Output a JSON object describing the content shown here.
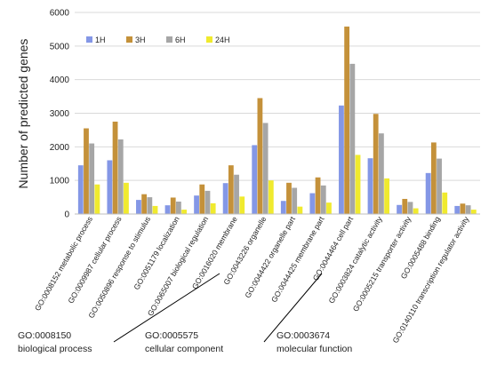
{
  "chart_data": {
    "type": "bar",
    "ylabel": "Number of predicted genes",
    "xlabel": "",
    "ylim": [
      0,
      6000
    ],
    "yticks": [
      0,
      1000,
      2000,
      3000,
      4000,
      5000,
      6000
    ],
    "grid": true,
    "legend_position": "top-left",
    "categories": [
      "GO:0008152 metabolic process",
      "GO:0009987 cellular process",
      "GO:0050896 response to stimulus",
      "GO:0051179 localization",
      "GO:0065007 biological regulation",
      "GO:0016020 membrane",
      "GO:0043226 organelle",
      "GO:0044422 organelle part",
      "GO:0044425 membrane part",
      "GO:0044464 cell part",
      "GO:0003824 catalytic activity",
      "GO:0005215 transporter activity",
      "GO:0005488 binding",
      "GO:0140110 transcription regulator activity"
    ],
    "series": [
      {
        "name": "1H",
        "color": "#8497e6",
        "values": [
          1450,
          1600,
          420,
          260,
          550,
          920,
          2050,
          390,
          620,
          3230,
          1660,
          270,
          1220,
          240
        ]
      },
      {
        "name": "3H",
        "color": "#c4913a",
        "values": [
          2550,
          2750,
          590,
          490,
          880,
          1450,
          3450,
          930,
          1090,
          5580,
          2980,
          450,
          2130,
          310
        ]
      },
      {
        "name": "6H",
        "color": "#a6a6a6",
        "values": [
          2100,
          2220,
          500,
          370,
          690,
          1170,
          2710,
          780,
          850,
          4470,
          2400,
          360,
          1650,
          260
        ]
      },
      {
        "name": "24H",
        "color": "#f0ea2e",
        "values": [
          880,
          930,
          240,
          130,
          320,
          520,
          1000,
          220,
          340,
          1760,
          1060,
          170,
          640,
          130
        ]
      }
    ],
    "groups": [
      {
        "code": "GO:0008150",
        "name": "biological process"
      },
      {
        "code": "GO:0005575",
        "name": "cellular component"
      },
      {
        "code": "GO:0003674",
        "name": "molecular function"
      }
    ]
  }
}
